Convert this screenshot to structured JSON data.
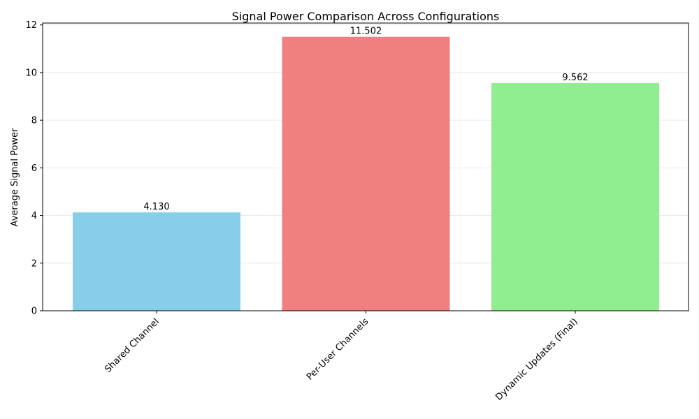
{
  "chart_data": {
    "type": "bar",
    "title": "Signal Power Comparison Across Configurations",
    "xlabel": "",
    "ylabel": "Average Signal Power",
    "categories": [
      "Shared Channel",
      "Per-User Channels",
      "Dynamic Updates (Final)"
    ],
    "values": [
      4.13,
      11.502,
      9.562
    ],
    "value_labels": [
      "4.130",
      "11.502",
      "9.562"
    ],
    "colors": [
      "#87ceeb",
      "#f08080",
      "#90ee90"
    ],
    "ylim": [
      0,
      12.08
    ],
    "yticks": [
      0,
      2,
      4,
      6,
      8,
      10,
      12
    ],
    "ytick_labels": [
      "0",
      "2",
      "4",
      "6",
      "8",
      "10",
      "12"
    ],
    "grid": "horizontal",
    "legend": "none"
  }
}
